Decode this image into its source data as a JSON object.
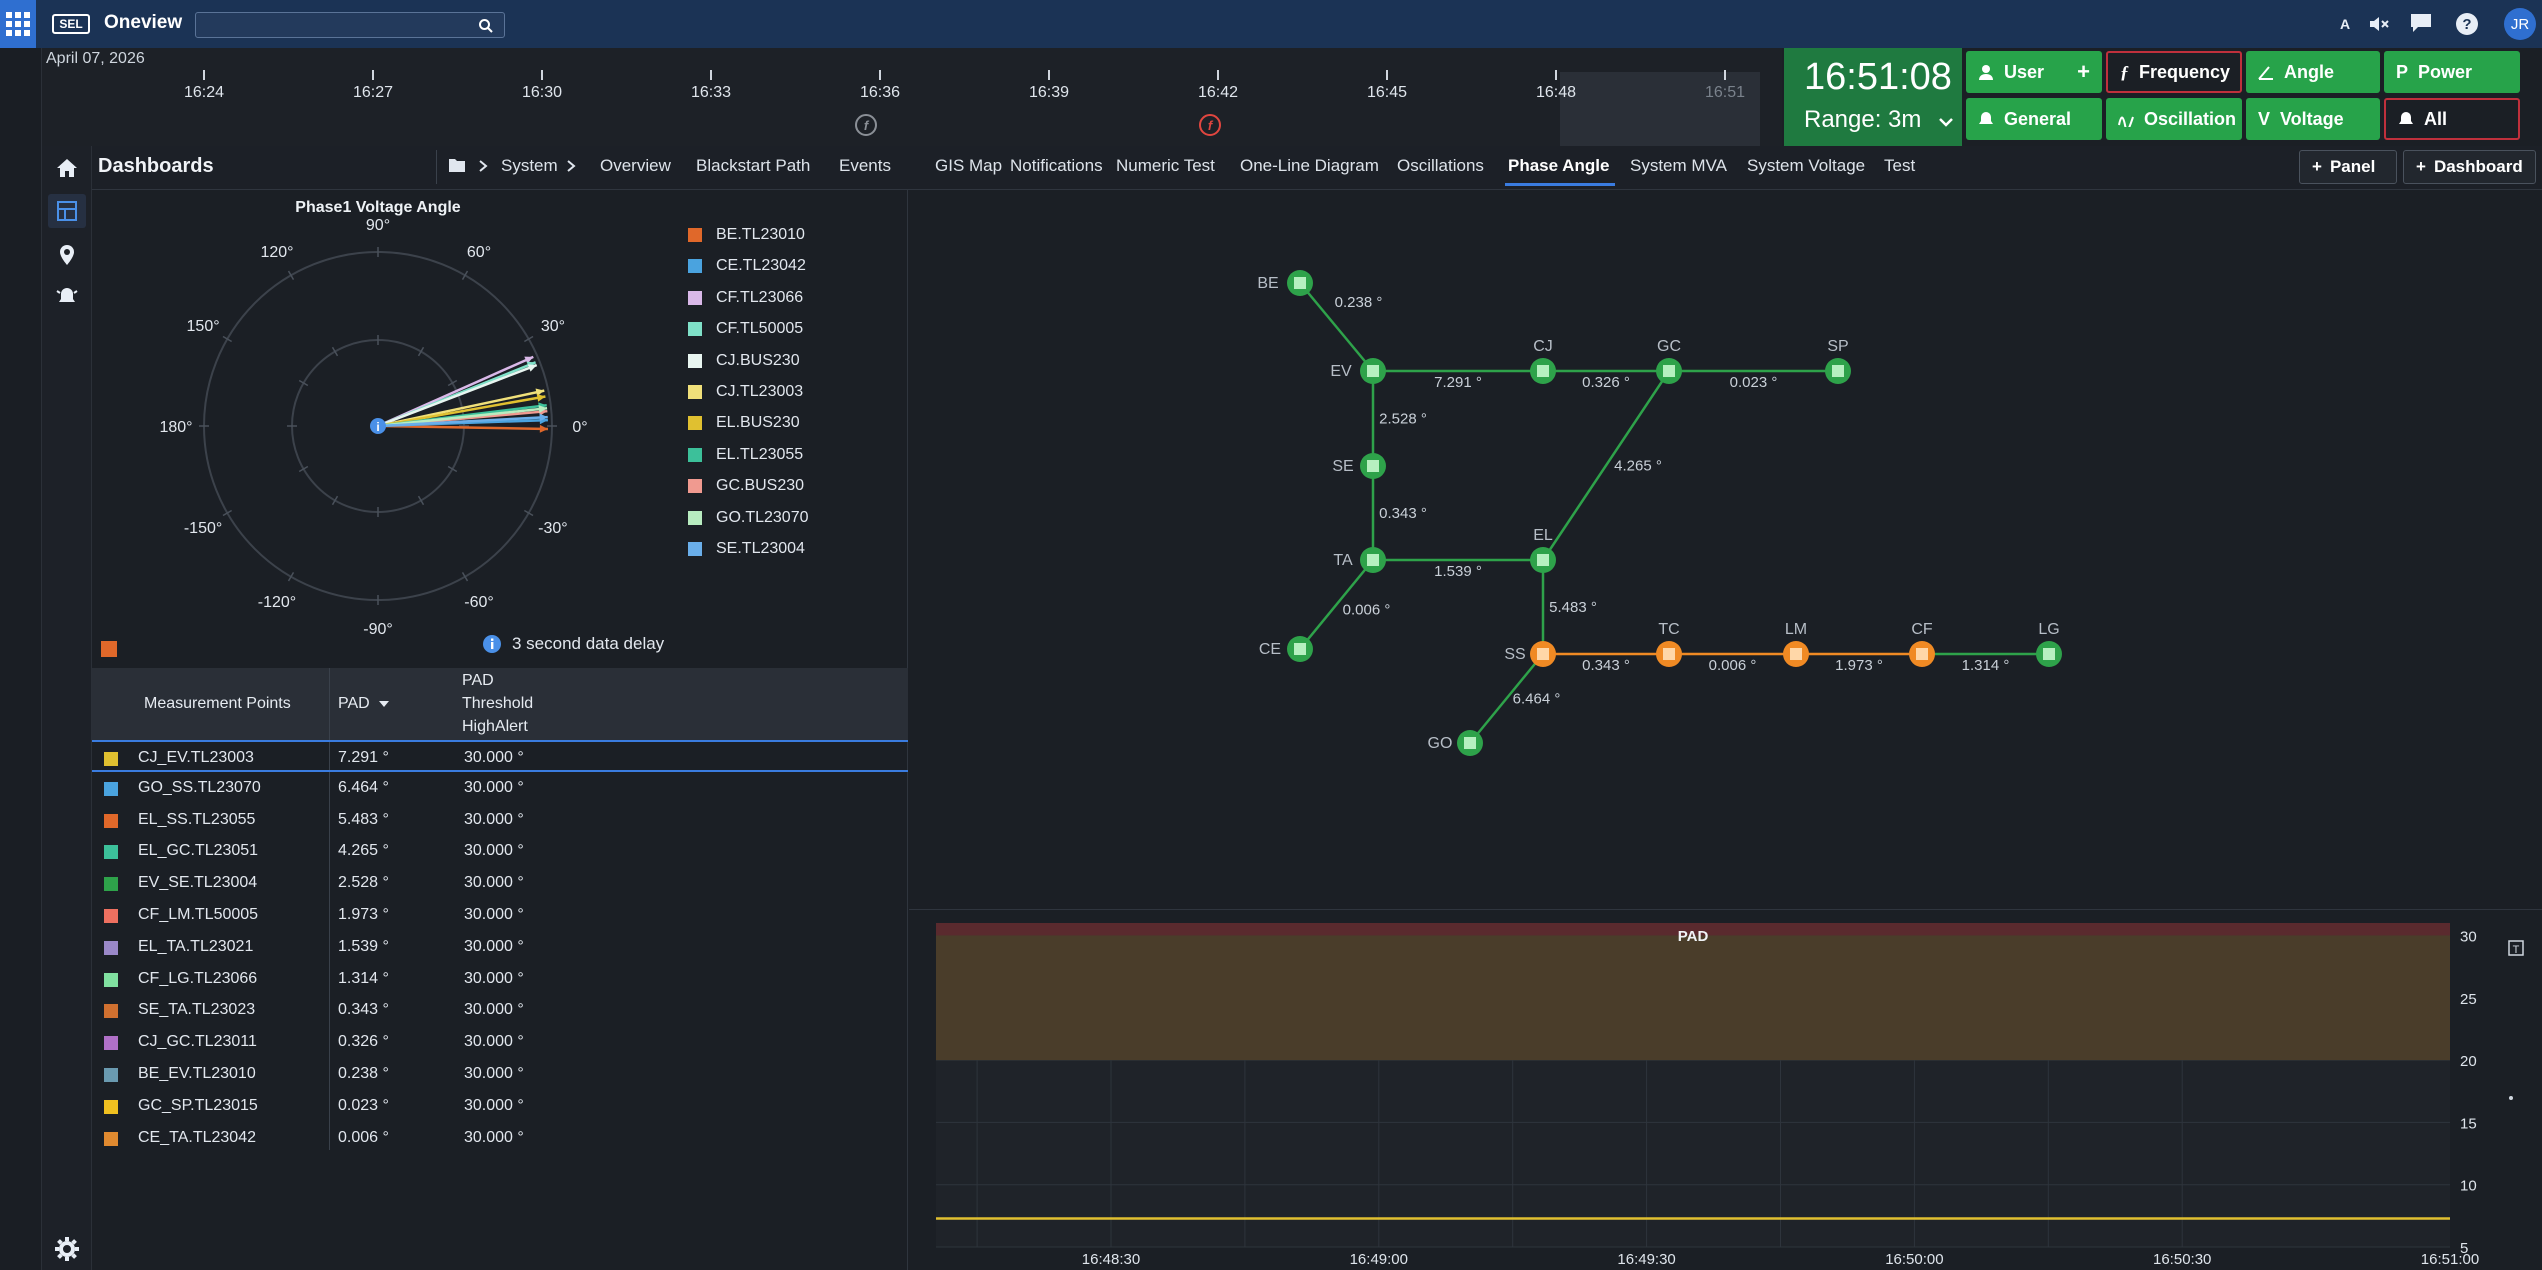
{
  "app": {
    "name": "Oneview",
    "logo": "SEL",
    "user_initials": "JR",
    "search_placeholder": ""
  },
  "topbar_icons": [
    {
      "name": "text-size-icon",
      "glyph": "A"
    },
    {
      "name": "mute-icon",
      "glyph": "🔇"
    },
    {
      "name": "chat-icon",
      "glyph": "💬"
    },
    {
      "name": "help-icon",
      "glyph": "?"
    }
  ],
  "timeline": {
    "date": "April 07, 2026",
    "labels": [
      "16:24",
      "16:27",
      "16:30",
      "16:33",
      "16:36",
      "16:39",
      "16:42",
      "16:45",
      "16:48",
      "16:51"
    ],
    "markers": [
      {
        "name": "frequency-event-marker",
        "glyph": "f",
        "color": "#8a8f96"
      },
      {
        "name": "frequency-alarm-marker",
        "glyph": "f",
        "color": "#e0463f"
      }
    ]
  },
  "clock": {
    "time": "16:51:08",
    "range": "Range: 3m"
  },
  "quick_buttons": {
    "user": "User",
    "frequency": "Frequency",
    "angle": "Angle",
    "power": "Power",
    "general": "General",
    "oscillation": "Oscillation",
    "voltage": "Voltage",
    "all": "All"
  },
  "dashboard": {
    "title": "Dashboards",
    "breadcrumb_root": "System",
    "tabs": [
      "Overview",
      "Blackstart Path",
      "Events",
      "GIS Map",
      "Notifications",
      "Numeric Test",
      "One-Line Diagram",
      "Oscillations",
      "Phase Angle",
      "System MVA",
      "System Voltage",
      "Test"
    ],
    "active_tab": "Phase Angle",
    "panel_button": "Panel",
    "dashboard_button": "Dashboard"
  },
  "polar_chart": {
    "title": "Phase1 Voltage Angle",
    "angle_labels": [
      "90°",
      "60°",
      "30°",
      "0°",
      "-30°",
      "-60°",
      "-90°",
      "-120°",
      "-150°",
      "180°",
      "150°",
      "120°"
    ],
    "note": "3 second data delay",
    "legend": [
      {
        "label": "BE.TL23010",
        "color": "#e0682a"
      },
      {
        "label": "CE.TL23042",
        "color": "#4aa3df"
      },
      {
        "label": "CF.TL23066",
        "color": "#d9b8e8"
      },
      {
        "label": "CF.TL50005",
        "color": "#7fe0c8"
      },
      {
        "label": "CJ.BUS230",
        "color": "#e8f5f0"
      },
      {
        "label": "CJ.TL23003",
        "color": "#f0e07a"
      },
      {
        "label": "EL.BUS230",
        "color": "#e0c030"
      },
      {
        "label": "EL.TL23055",
        "color": "#3cc09a"
      },
      {
        "label": "GC.BUS230",
        "color": "#f09a90"
      },
      {
        "label": "GO.TL23070",
        "color": "#b8ecc0"
      },
      {
        "label": "SE.TL23004",
        "color": "#6aaeea"
      }
    ]
  },
  "chart_data": [
    {
      "type": "polar",
      "title": "Phase1 Voltage Angle",
      "unit": "°",
      "series": [
        {
          "name": "BE.TL23010",
          "angle": -1
        },
        {
          "name": "CE.TL23042",
          "angle": 2
        },
        {
          "name": "CF.TL23066",
          "angle": 24
        },
        {
          "name": "CF.TL50005",
          "angle": 22
        },
        {
          "name": "CJ.BUS230",
          "angle": 21
        },
        {
          "name": "CJ.TL23003",
          "angle": 12
        },
        {
          "name": "EL.BUS230",
          "angle": 10
        },
        {
          "name": "EL.TL23055",
          "angle": 7
        },
        {
          "name": "GC.BUS230",
          "angle": 5
        },
        {
          "name": "GO.TL23070",
          "angle": 6
        },
        {
          "name": "SE.TL23004",
          "angle": 3
        }
      ]
    },
    {
      "type": "line",
      "title": "PAD",
      "x_ticks": [
        "16:48:30",
        "16:49:00",
        "16:49:30",
        "16:50:00",
        "16:50:30",
        "16:51:00"
      ],
      "y_ticks": [
        30,
        25,
        20,
        15,
        10,
        5
      ],
      "ylim": [
        5,
        31
      ],
      "threshold_band": [
        20,
        30
      ],
      "series": [
        {
          "values": [
            7.29,
            7.29,
            7.29,
            7.29,
            7.29,
            7.29,
            7.29
          ]
        }
      ]
    }
  ],
  "table": {
    "headers": {
      "points": "Measurement Points",
      "pad": "PAD",
      "threshold_l1": "PAD",
      "threshold_l2": "Threshold",
      "threshold_l3": "HighAlert"
    },
    "rows": [
      {
        "point": "CJ_EV.TL23003",
        "pad": "7.291 °",
        "threshold": "30.000 °",
        "color": "#e0c030"
      },
      {
        "point": "GO_SS.TL23070",
        "pad": "6.464 °",
        "threshold": "30.000 °",
        "color": "#4aa3df"
      },
      {
        "point": "EL_SS.TL23055",
        "pad": "5.483 °",
        "threshold": "30.000 °",
        "color": "#e0682a"
      },
      {
        "point": "EL_GC.TL23051",
        "pad": "4.265 °",
        "threshold": "30.000 °",
        "color": "#3cc09a"
      },
      {
        "point": "EV_SE.TL23004",
        "pad": "2.528 °",
        "threshold": "30.000 °",
        "color": "#2ea24a"
      },
      {
        "point": "CF_LM.TL50005",
        "pad": "1.973 °",
        "threshold": "30.000 °",
        "color": "#ee7060"
      },
      {
        "point": "EL_TA.TL23021",
        "pad": "1.539 °",
        "threshold": "30.000 °",
        "color": "#9a88c8"
      },
      {
        "point": "CF_LG.TL23066",
        "pad": "1.314 °",
        "threshold": "30.000 °",
        "color": "#80e0a0"
      },
      {
        "point": "SE_TA.TL23023",
        "pad": "0.343 °",
        "threshold": "30.000 °",
        "color": "#d07030"
      },
      {
        "point": "CJ_GC.TL23011",
        "pad": "0.326 °",
        "threshold": "30.000 °",
        "color": "#b070c8"
      },
      {
        "point": "BE_EV.TL23010",
        "pad": "0.238 °",
        "threshold": "30.000 °",
        "color": "#6a9ab0"
      },
      {
        "point": "GC_SP.TL23015",
        "pad": "0.023 °",
        "threshold": "30.000 °",
        "color": "#f0c020"
      },
      {
        "point": "CE_TA.TL23042",
        "pad": "0.006 °",
        "threshold": "30.000 °",
        "color": "#e08a30"
      }
    ]
  },
  "oneline": {
    "nodes": [
      {
        "id": "BE",
        "status": "normal"
      },
      {
        "id": "EV",
        "status": "normal"
      },
      {
        "id": "CJ",
        "status": "normal"
      },
      {
        "id": "GC",
        "status": "normal"
      },
      {
        "id": "SP",
        "status": "normal"
      },
      {
        "id": "SE",
        "status": "normal"
      },
      {
        "id": "TA",
        "status": "normal"
      },
      {
        "id": "EL",
        "status": "normal"
      },
      {
        "id": "CE",
        "status": "normal"
      },
      {
        "id": "SS",
        "status": "warning"
      },
      {
        "id": "TC",
        "status": "warning"
      },
      {
        "id": "LM",
        "status": "warning"
      },
      {
        "id": "CF",
        "status": "warning"
      },
      {
        "id": "LG",
        "status": "normal"
      },
      {
        "id": "GO",
        "status": "normal"
      }
    ],
    "edges": [
      {
        "from": "BE",
        "to": "EV",
        "label": "0.238 °"
      },
      {
        "from": "EV",
        "to": "CJ",
        "label": "7.291 °"
      },
      {
        "from": "CJ",
        "to": "GC",
        "label": "0.326 °"
      },
      {
        "from": "GC",
        "to": "SP",
        "label": "0.023 °"
      },
      {
        "from": "EV",
        "to": "SE",
        "label": "2.528 °"
      },
      {
        "from": "GC",
        "to": "EL",
        "label": "4.265 °"
      },
      {
        "from": "SE",
        "to": "TA",
        "label": "0.343 °"
      },
      {
        "from": "TA",
        "to": "EL",
        "label": "1.539 °"
      },
      {
        "from": "TA",
        "to": "CE",
        "label": "0.006 °"
      },
      {
        "from": "EL",
        "to": "SS",
        "label": "5.483 °"
      },
      {
        "from": "SS",
        "to": "TC",
        "label": "0.343 °"
      },
      {
        "from": "TC",
        "to": "LM",
        "label": "0.006 °"
      },
      {
        "from": "LM",
        "to": "CF",
        "label": "1.973 °"
      },
      {
        "from": "CF",
        "to": "LG",
        "label": "1.314 °"
      },
      {
        "from": "SS",
        "to": "GO",
        "label": "6.464 °"
      }
    ]
  },
  "colors": {
    "accent": "#3a7ce0",
    "normal": "#2ea24a",
    "warning": "#f08a24",
    "alarm": "#c0303c",
    "threshold_band": "#4a3d2a"
  }
}
